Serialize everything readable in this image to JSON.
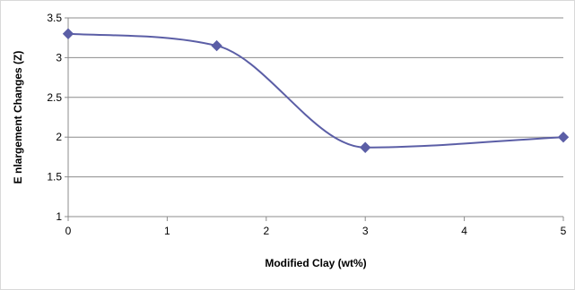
{
  "chart_data": {
    "type": "line",
    "title": "",
    "xlabel": "Modified Clay (wt%)",
    "ylabel": "E nlargement Changes  (Z)",
    "xlim": [
      0,
      5
    ],
    "ylim": [
      1,
      3.5
    ],
    "x_ticks": [
      "0",
      "1",
      "2",
      "3",
      "4",
      "5"
    ],
    "y_ticks": [
      "1",
      "1.5",
      "2",
      "2.5",
      "3",
      "3.5"
    ],
    "grid": "horizontal",
    "smooth": true,
    "series": [
      {
        "x": [
          0,
          1.5,
          3,
          5
        ],
        "y": [
          3.3,
          3.15,
          1.87,
          2.0
        ],
        "marker": "diamond",
        "color": "#5B5EA6"
      }
    ]
  }
}
